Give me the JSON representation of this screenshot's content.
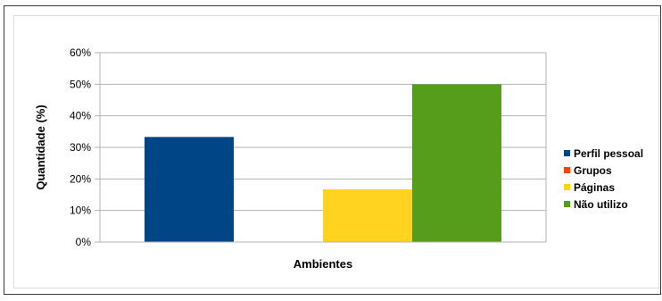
{
  "chart_data": {
    "type": "bar",
    "xlabel": "Ambientes",
    "ylabel": "Quantidade (%)",
    "ylim": [
      0,
      60
    ],
    "yticks": [
      "0%",
      "10%",
      "20%",
      "30%",
      "40%",
      "50%",
      "60%"
    ],
    "grid": true,
    "legend_position": "right",
    "categories": [
      ""
    ],
    "series": [
      {
        "name": "Perfil pessoal",
        "color": "#004586",
        "values": [
          33.3
        ]
      },
      {
        "name": "Grupos",
        "color": "#ff420e",
        "values": [
          0
        ]
      },
      {
        "name": "Páginas",
        "color": "#ffd320",
        "values": [
          16.7
        ]
      },
      {
        "name": "Não utilizo",
        "color": "#579d1c",
        "values": [
          50
        ]
      }
    ]
  }
}
